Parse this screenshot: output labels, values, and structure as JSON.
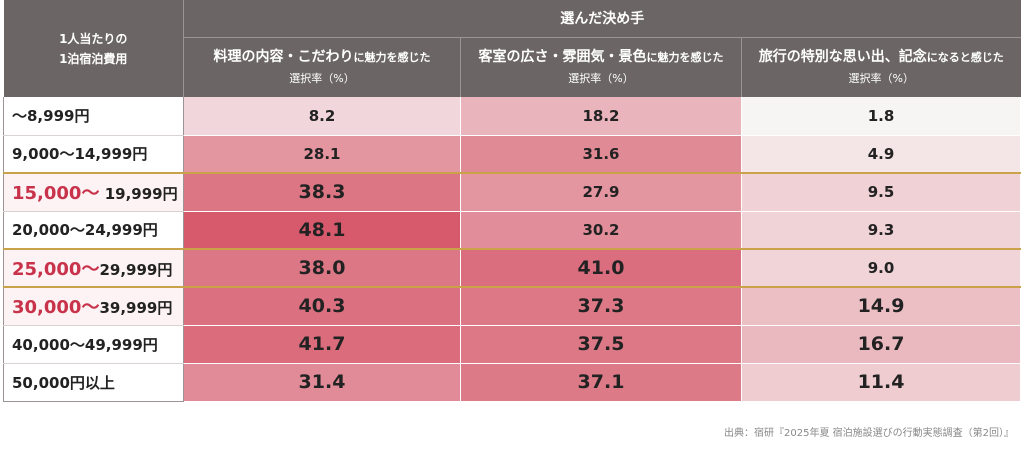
{
  "chart_data": {
    "type": "heatmap",
    "row_header": "1人当たりの\n1泊宿泊費用",
    "group_header": "選んだ決め手",
    "columns": [
      {
        "name": "料理の内容・こだわり",
        "name_suffix": "に魅力を感じた",
        "unit": "選択率（%）"
      },
      {
        "name": "客室の広さ・雰囲気・景色",
        "name_suffix": "に魅力を感じた",
        "unit": "選択率（%）"
      },
      {
        "name": "旅行の特別な思い出、記念",
        "name_suffix": "になると感じた",
        "unit": "選択率（%）"
      }
    ],
    "rows": [
      {
        "label_lead": "",
        "label_rest": "〜8,999円",
        "highlight": false,
        "divider_above": false,
        "values": [
          8.2,
          18.2,
          1.8
        ]
      },
      {
        "label_lead": "",
        "label_rest": "9,000〜14,999円",
        "highlight": false,
        "divider_above": false,
        "values": [
          28.1,
          31.6,
          4.9
        ]
      },
      {
        "label_lead": "15,000〜",
        "label_rest": " 19,999円",
        "highlight": true,
        "divider_above": true,
        "values": [
          38.3,
          27.9,
          9.5
        ]
      },
      {
        "label_lead": "",
        "label_rest": "20,000〜24,999円",
        "highlight": false,
        "divider_above": false,
        "values": [
          48.1,
          30.2,
          9.3
        ]
      },
      {
        "label_lead": "25,000〜",
        "label_rest": "29,999円",
        "highlight": true,
        "divider_above": true,
        "values": [
          38.0,
          41.0,
          9.0
        ]
      },
      {
        "label_lead": "30,000〜",
        "label_rest": "39,999円",
        "highlight": true,
        "divider_above": true,
        "values": [
          40.3,
          37.3,
          14.9
        ]
      },
      {
        "label_lead": "",
        "label_rest": "40,000〜49,999円",
        "highlight": false,
        "divider_above": false,
        "values": [
          41.7,
          37.5,
          16.7
        ]
      },
      {
        "label_lead": "",
        "label_rest": "50,000円以上",
        "highlight": false,
        "divider_above": false,
        "values": [
          31.4,
          37.1,
          11.4
        ]
      }
    ],
    "big_value_cells": [
      [
        2,
        0
      ],
      [
        3,
        0
      ],
      [
        4,
        0
      ],
      [
        4,
        1
      ],
      [
        5,
        0
      ],
      [
        5,
        1
      ],
      [
        5,
        2
      ],
      [
        6,
        0
      ],
      [
        6,
        1
      ],
      [
        6,
        2
      ],
      [
        7,
        0
      ],
      [
        7,
        1
      ],
      [
        7,
        2
      ]
    ],
    "colors": {
      "low": "#f7f4f4",
      "high": "#d65a6c",
      "header_bg": "#6b6665",
      "divider": "#c9a24a",
      "highlight_text": "#c8324a"
    }
  },
  "source": "出典：宿研『2025年夏 宿泊施設選びの行動実態調査（第2回）』"
}
